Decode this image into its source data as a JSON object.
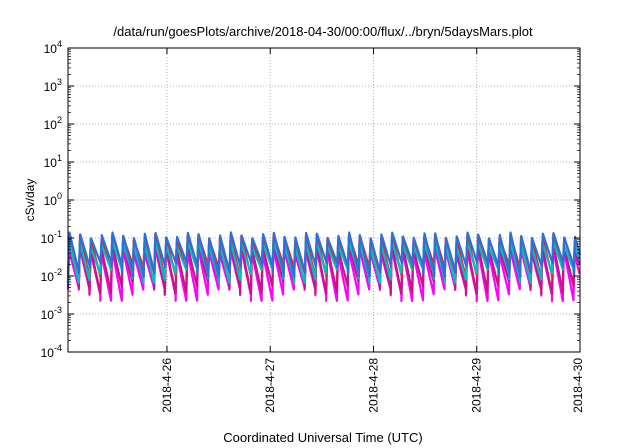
{
  "chart_data": {
    "type": "line",
    "title": "/data/run/goesPlots/archive/2018-04-30/00:00/flux/../bryn/5daysMars.plot",
    "xlabel": "Coordinated Universal Time (UTC)",
    "ylabel": "cSv/day",
    "yscale": "log",
    "ylim": [
      0.0001,
      10000
    ],
    "xlim": [
      "2018-04-25 01:00",
      "2018-04-30 00:00"
    ],
    "grid": true,
    "y_ticks": [
      {
        "base": "10",
        "exp": "-4",
        "value": 0.0001
      },
      {
        "base": "10",
        "exp": "-3",
        "value": 0.001
      },
      {
        "base": "10",
        "exp": "-2",
        "value": 0.01
      },
      {
        "base": "10",
        "exp": "-1",
        "value": 0.1
      },
      {
        "base": "10",
        "exp": "0",
        "value": 1
      },
      {
        "base": "10",
        "exp": "1",
        "value": 10
      },
      {
        "base": "10",
        "exp": "2",
        "value": 100
      },
      {
        "base": "10",
        "exp": "3",
        "value": 1000
      },
      {
        "base": "10",
        "exp": "4",
        "value": 10000
      }
    ],
    "x_ticks": [
      {
        "label": "2018-4-26",
        "value": "2018-04-26 00:00"
      },
      {
        "label": "2018-4-27",
        "value": "2018-04-27 00:00"
      },
      {
        "label": "2018-4-28",
        "value": "2018-04-28 00:00"
      },
      {
        "label": "2018-4-29",
        "value": "2018-04-29 00:00"
      },
      {
        "label": "2018-4-30",
        "value": "2018-04-30 00:00"
      }
    ],
    "pattern": {
      "note": "periodic sawtooth dose rate, rising steeply then decaying",
      "period_hours": 2.5
    },
    "series": [
      {
        "color": "#ff00ff",
        "peak": 0.055,
        "trough": 0.0035,
        "lag_hours": 0.0
      },
      {
        "color": "#c71585",
        "peak": 0.075,
        "trough": 0.0055,
        "lag_hours": 0.0
      },
      {
        "color": "#ff1a1a",
        "peak": 0.125,
        "trough": 0.014,
        "lag_hours": 0.05
      },
      {
        "color": "#00c0c0",
        "peak": 0.085,
        "trough": 0.011,
        "lag_hours": 0.0
      },
      {
        "color": "#2f6fd8",
        "peak": 0.14,
        "trough": 0.016,
        "lag_hours": 0.1
      }
    ]
  }
}
